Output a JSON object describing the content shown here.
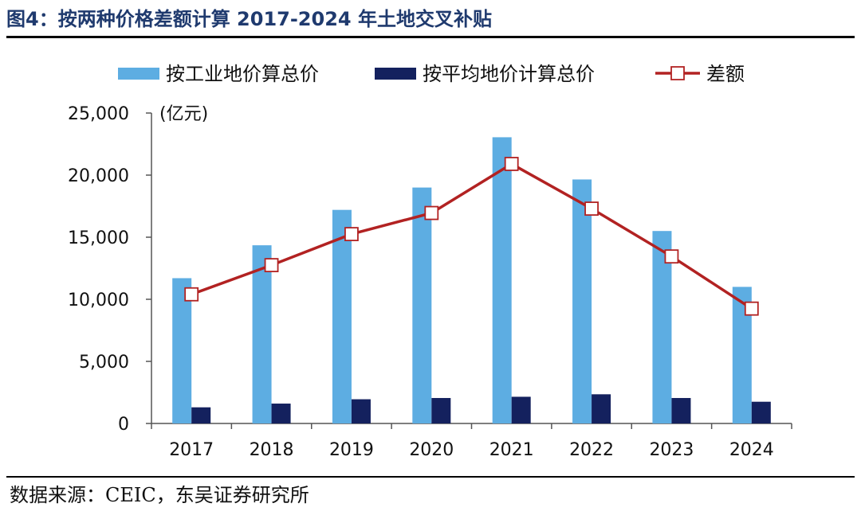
{
  "figure": {
    "title": "图4：按两种价格差额计算 2017-2024 年土地交叉补贴",
    "source": "数据来源：CEIC，东吴证券研究所"
  },
  "chart_data": {
    "type": "bar",
    "categories": [
      "2017",
      "2018",
      "2019",
      "2020",
      "2021",
      "2022",
      "2023",
      "2024"
    ],
    "ylim": [
      0,
      25000
    ],
    "yticks": [
      0,
      5000,
      10000,
      15000,
      20000,
      25000
    ],
    "ytick_labels": [
      "0",
      "5,000",
      "10,000",
      "15,000",
      "20,000",
      "25,000"
    ],
    "unit_label": "(亿元)",
    "legend_position": "top",
    "series": [
      {
        "name": "按工业地价算总价",
        "kind": "bar",
        "color": "#5dade2",
        "values": [
          11700,
          14350,
          17200,
          19000,
          23050,
          19650,
          15500,
          11000
        ]
      },
      {
        "name": "按平均地价计算总价",
        "kind": "bar",
        "color": "#14215e",
        "values": [
          1300,
          1600,
          1950,
          2050,
          2150,
          2350,
          2050,
          1750
        ]
      },
      {
        "name": "差额",
        "kind": "line",
        "color": "#b22222",
        "values": [
          10400,
          12750,
          15250,
          16950,
          20900,
          17300,
          13450,
          9250
        ]
      }
    ]
  }
}
